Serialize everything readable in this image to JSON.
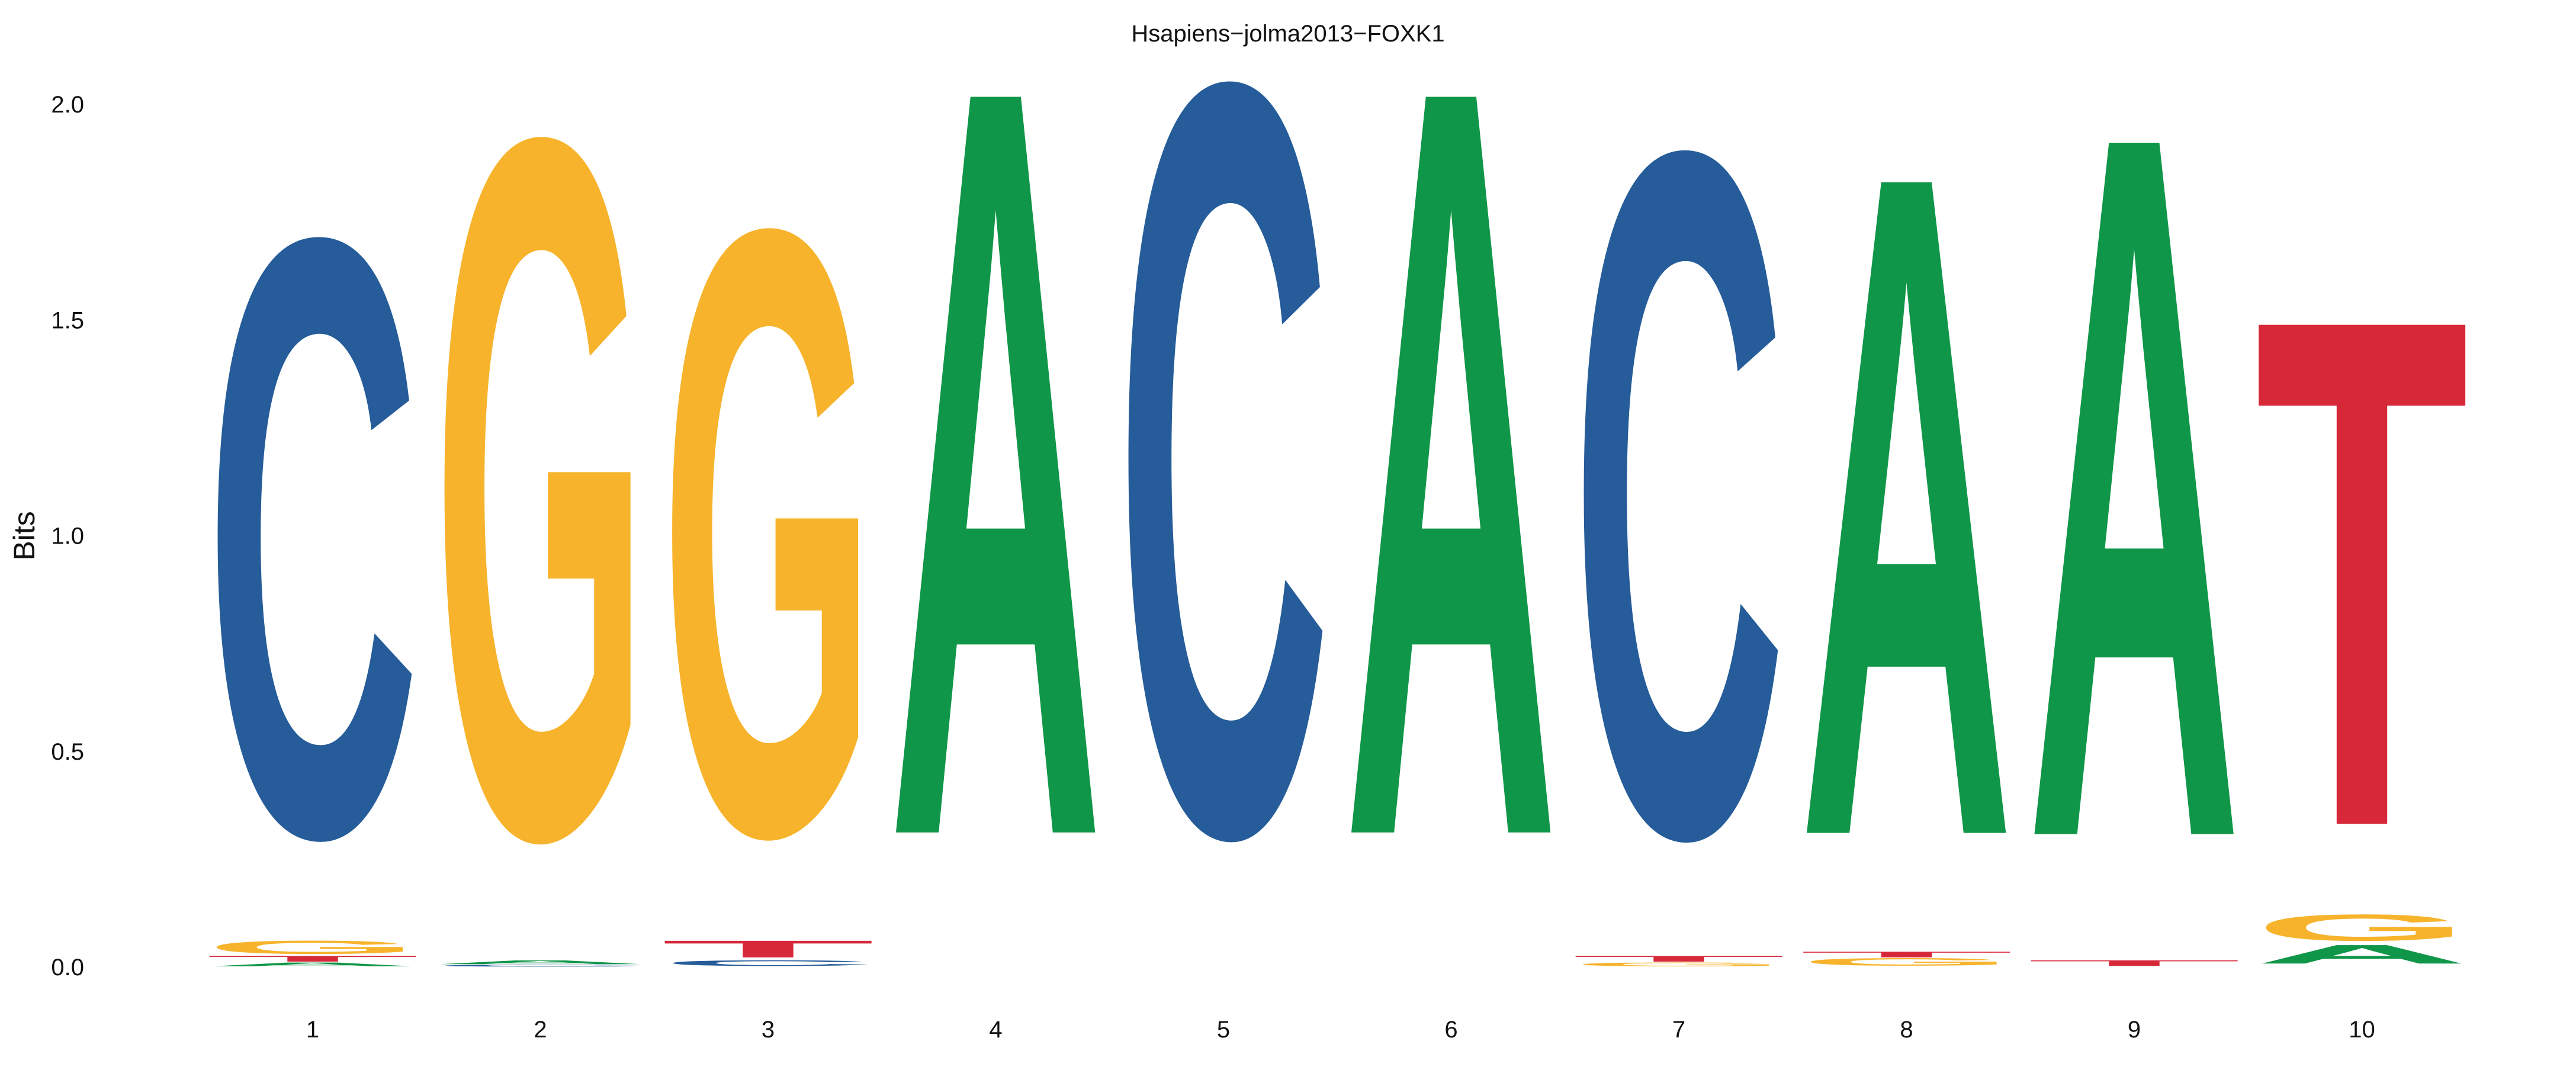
{
  "chart_data": {
    "type": "sequence-logo",
    "title": "Hsapiens−jolma2013−FOXK1",
    "xlabel": "",
    "ylabel": "Bits",
    "ylim": [
      0,
      2.0
    ],
    "yticks": [
      "0.0",
      "0.5",
      "1.0",
      "1.5",
      "2.0"
    ],
    "ytick_values": [
      0,
      0.5,
      1.0,
      1.5,
      2.0
    ],
    "positions": [
      "1",
      "2",
      "3",
      "4",
      "5",
      "6",
      "7",
      "8",
      "9",
      "10"
    ],
    "grid": false,
    "legend": "none",
    "colors": {
      "A": "#109648",
      "C": "#255C99",
      "G": "#F7B32B",
      "T": "#D62839"
    },
    "stacks": [
      [
        {
          "letter": "A",
          "bits": 0.01
        },
        {
          "letter": "T",
          "bits": 0.015
        },
        {
          "letter": "G",
          "bits": 0.035
        },
        {
          "letter": "C",
          "bits": 1.59
        }
      ],
      [
        {
          "letter": "C",
          "bits": 0.005
        },
        {
          "letter": "A",
          "bits": 0.01
        },
        {
          "letter": "G",
          "bits": 1.86
        }
      ],
      [
        {
          "letter": "C",
          "bits": 0.015
        },
        {
          "letter": "T",
          "bits": 0.045
        },
        {
          "letter": "G",
          "bits": 1.61
        }
      ],
      [
        {
          "letter": "A",
          "bits": 1.99
        }
      ],
      [
        {
          "letter": "C",
          "bits": 2.0
        }
      ],
      [
        {
          "letter": "A",
          "bits": 1.99
        }
      ],
      [
        {
          "letter": "G",
          "bits": 0.01
        },
        {
          "letter": "T",
          "bits": 0.015
        },
        {
          "letter": "C",
          "bits": 1.82
        }
      ],
      [
        {
          "letter": "G",
          "bits": 0.02
        },
        {
          "letter": "T",
          "bits": 0.015
        },
        {
          "letter": "A",
          "bits": 1.76
        }
      ],
      [
        {
          "letter": "T",
          "bits": 0.015
        },
        {
          "letter": "A",
          "bits": 1.87
        }
      ],
      [
        {
          "letter": "A",
          "bits": 0.05
        },
        {
          "letter": "G",
          "bits": 0.07
        },
        {
          "letter": "T",
          "bits": 1.35
        }
      ]
    ]
  }
}
